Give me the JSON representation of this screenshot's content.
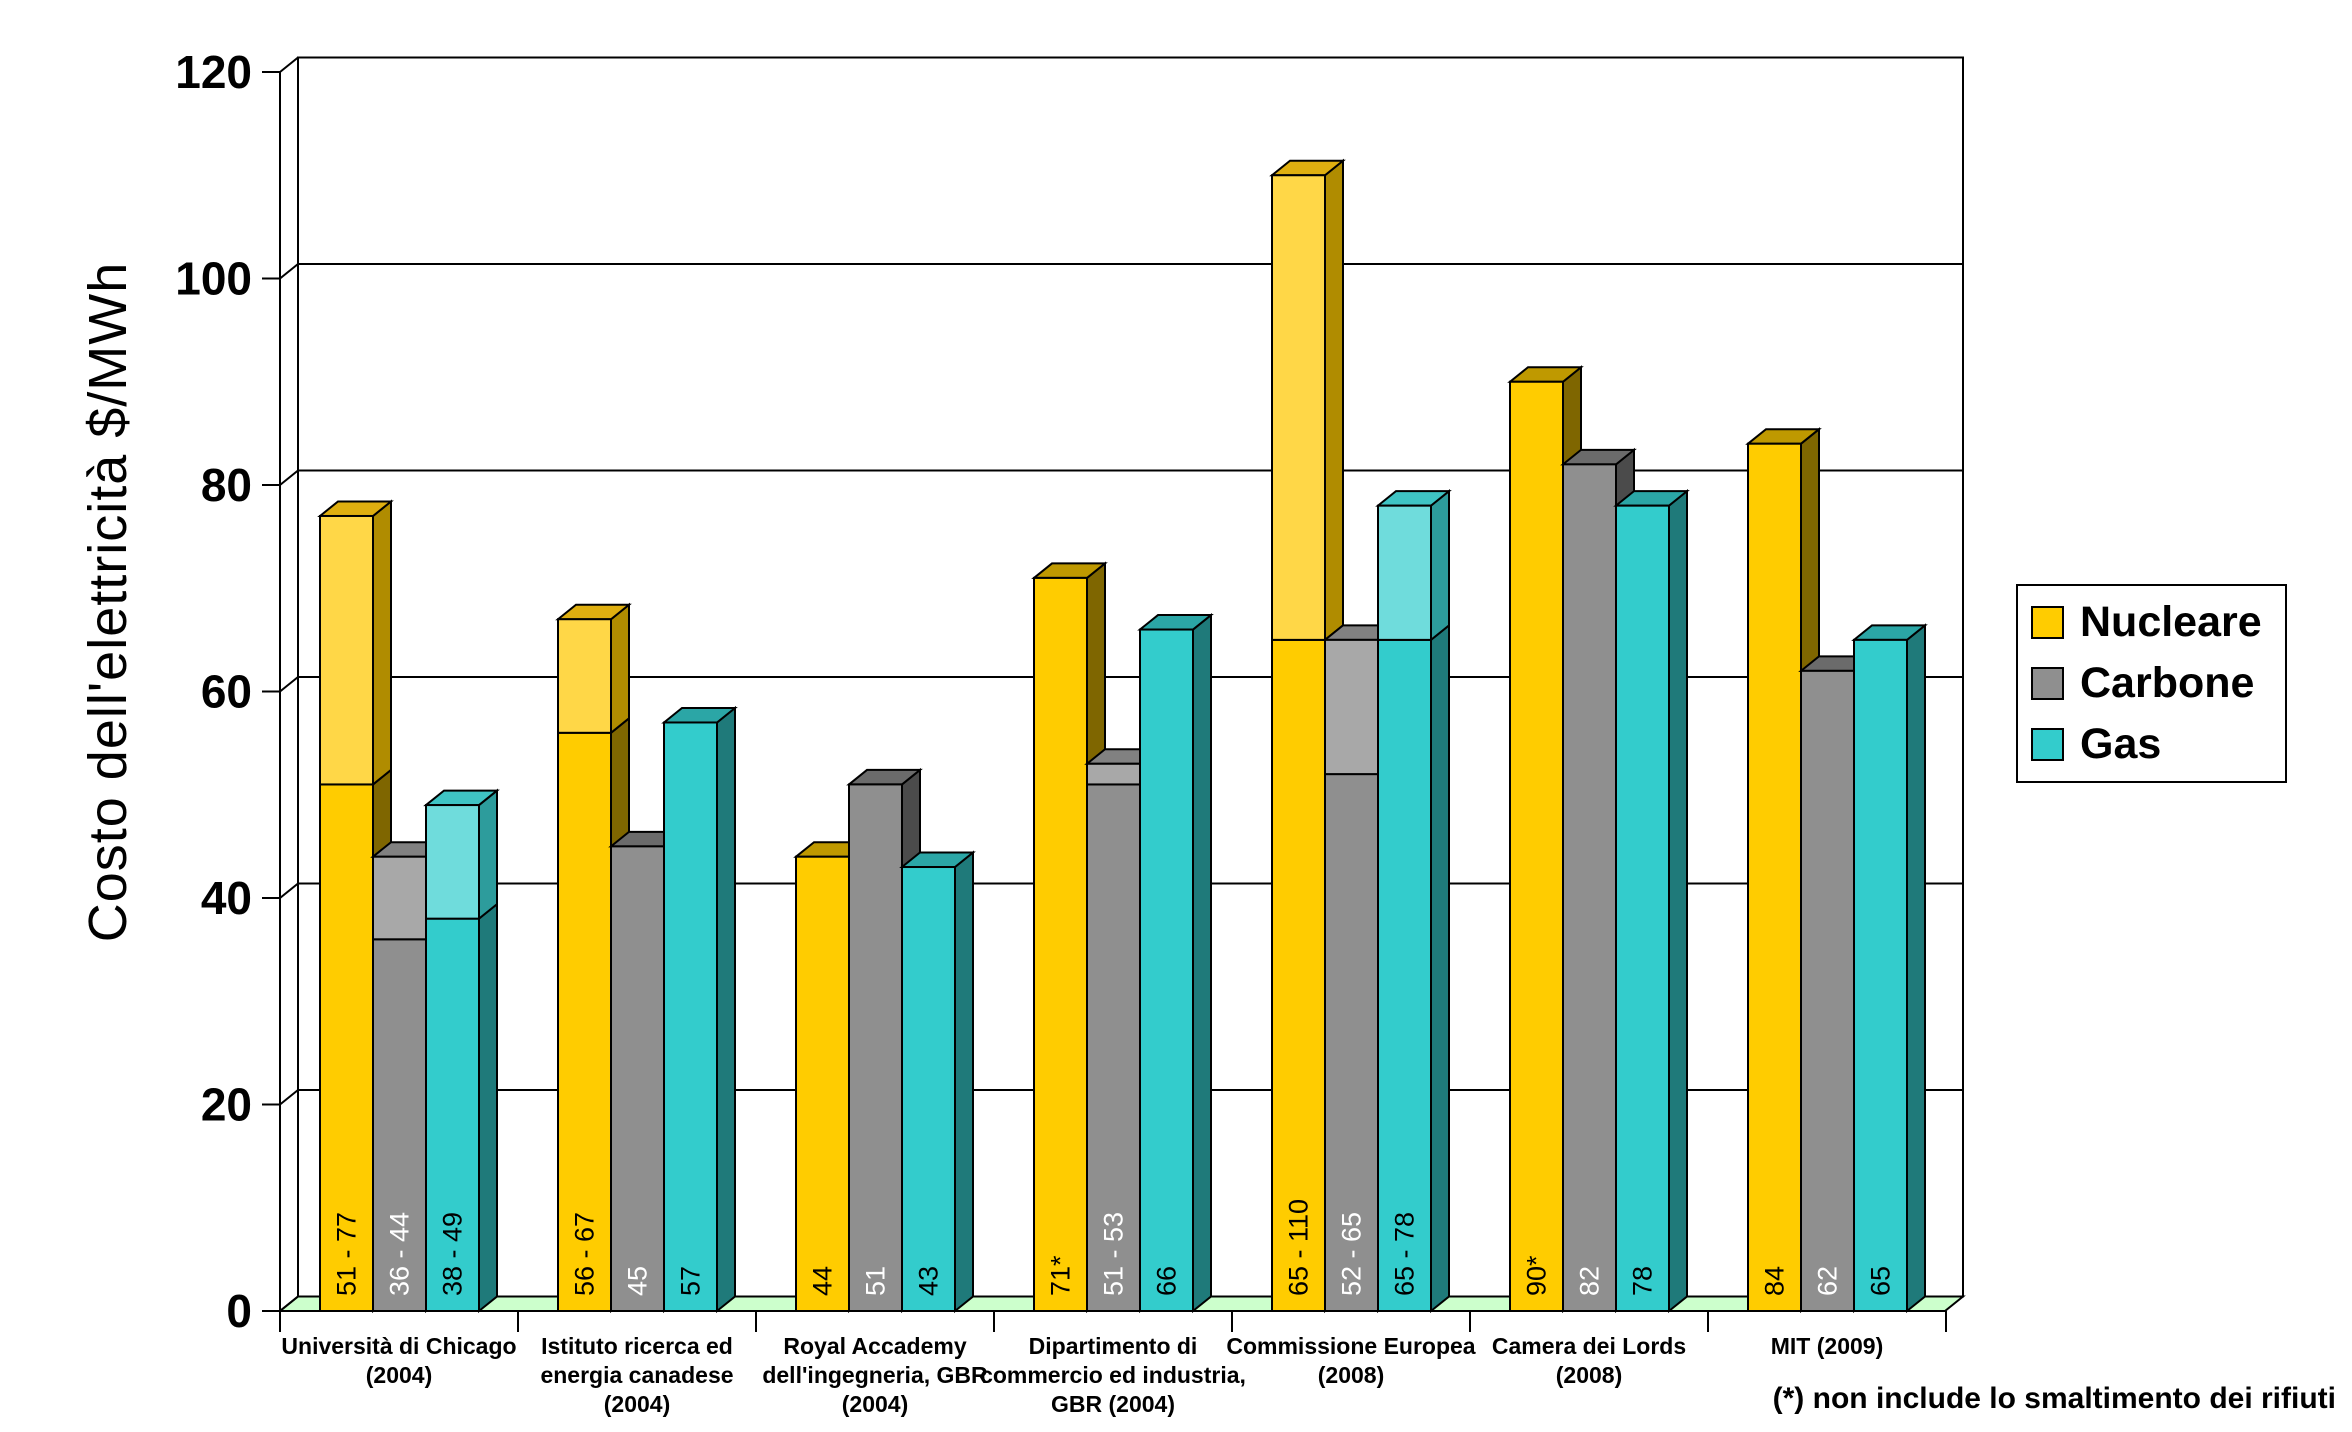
{
  "chart_data": {
    "type": "bar",
    "style": "3d-columns-with-ranges",
    "title": "",
    "ylabel": "Costo dell'elettricità $/MWh",
    "xlabel": "",
    "ylim": [
      0,
      120
    ],
    "yticks": [
      0,
      20,
      40,
      60,
      80,
      100,
      120
    ],
    "grid": "horizontal-back-wall",
    "legend_position": "right",
    "footnote": "(*) non include lo smaltimento dei rifiuti",
    "categories": [
      [
        "Università di Chicago",
        "(2004)"
      ],
      [
        "Istituto ricerca ed",
        "energia canadese",
        "(2004)"
      ],
      [
        "Royal Accademy",
        "dell'ingegneria, GBR",
        "(2004)"
      ],
      [
        "Dipartimento di",
        "commercio ed industria,",
        "GBR (2004)"
      ],
      [
        "Commissione Europea",
        "(2008)"
      ],
      [
        "Camera dei Lords",
        "(2008)"
      ],
      [
        "MIT (2009)"
      ]
    ],
    "series": [
      {
        "name": "Nucleare",
        "values": [
          [
            51,
            77
          ],
          [
            56,
            67
          ],
          [
            44,
            44
          ],
          [
            71,
            71
          ],
          [
            65,
            110
          ],
          [
            90,
            90
          ],
          [
            84,
            84
          ]
        ],
        "labels": [
          "51 - 77",
          "56 - 67",
          "44",
          "71*",
          "65 - 110",
          "90*",
          "84"
        ],
        "label_color": "#000000",
        "front": "#FFCC00",
        "front_light": "#FFD747",
        "top": "#BF9900",
        "top_light": "#DFAF10",
        "side": "#7F6600",
        "side_light": "#B08C00"
      },
      {
        "name": "Carbone",
        "values": [
          [
            36,
            44
          ],
          [
            45,
            45
          ],
          [
            51,
            51
          ],
          [
            51,
            53
          ],
          [
            52,
            65
          ],
          [
            82,
            82
          ],
          [
            62,
            62
          ]
        ],
        "labels": [
          "36 - 44",
          "45",
          "51",
          "51 - 53",
          "52 - 65",
          "82",
          "62"
        ],
        "label_color": "#FFFFFF",
        "front": "#8F8F8F",
        "front_light": "#A8A8A8",
        "top": "#6B6B6B",
        "top_light": "#818181",
        "side": "#4B4B4B",
        "side_light": "#757575"
      },
      {
        "name": "Gas",
        "values": [
          [
            38,
            49
          ],
          [
            57,
            57
          ],
          [
            43,
            43
          ],
          [
            66,
            66
          ],
          [
            65,
            78
          ],
          [
            78,
            78
          ],
          [
            65,
            65
          ]
        ],
        "labels": [
          "38 - 49",
          "57",
          "43",
          "66",
          "65 - 78",
          "78",
          "65"
        ],
        "label_color": "#000000",
        "front": "#33CCCC",
        "front_light": "#6FDCDC",
        "top": "#2BA6A6",
        "top_light": "#3FC4C4",
        "side": "#1F7A7A",
        "side_light": "#2D9C9C"
      }
    ],
    "colors": {
      "wall": "#FFFFFF",
      "floor": "#CCFFCC",
      "line": "#000000",
      "background": "#FFFFFF"
    }
  }
}
